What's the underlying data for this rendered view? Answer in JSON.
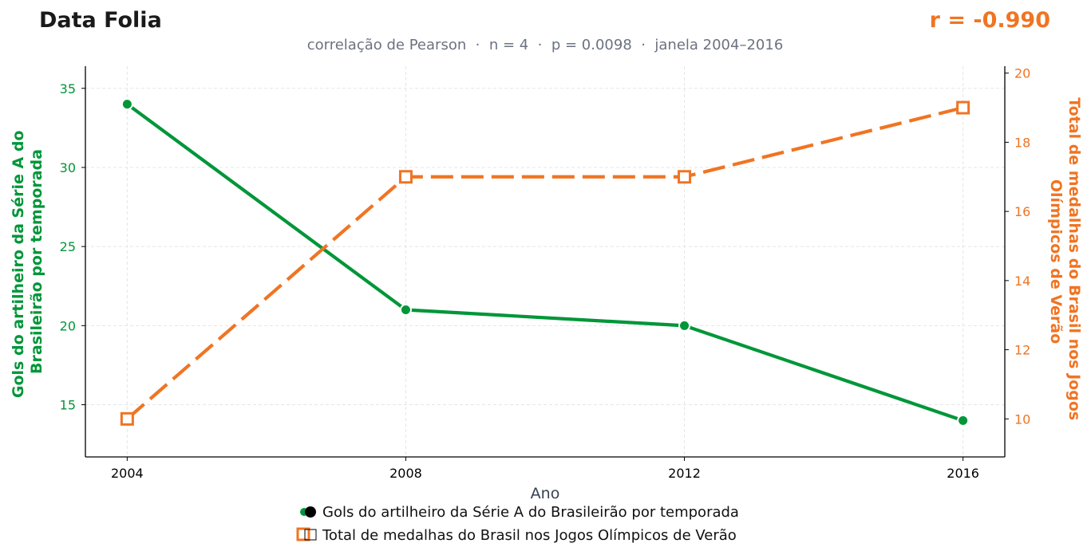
{
  "header": {
    "brand": "Data Folia",
    "stat": "r = -0.990",
    "subtitle": "correlação de Pearson  ·  n = 4  ·  p = 0.0098  ·  janela 2004–2016"
  },
  "colors": {
    "left": "#009639",
    "right": "#f07423",
    "grid": "#e5e5e5",
    "axis": "#000000"
  },
  "legend": {
    "placement": "bottom-center",
    "items": [
      {
        "marker": "filled-circle",
        "label": "Gols do artilheiro da Série A do Brasileirão por temporada"
      },
      {
        "marker": "open-square",
        "label": "Total de medalhas do Brasil nos Jogos Olímpicos de Verão"
      }
    ]
  },
  "chart_data": {
    "type": "line",
    "grid": true,
    "x": [
      2004,
      2008,
      2012,
      2016
    ],
    "xlabel": "Ano",
    "xticks": [
      2004,
      2008,
      2012,
      2016
    ],
    "xlim": [
      2003.4,
      2016.6
    ],
    "series": [
      {
        "name": "Gols do artilheiro da Série A do Brasileirão por temporada",
        "axis": "left",
        "values": [
          34,
          21,
          20,
          14
        ],
        "line_style": "solid",
        "marker": "circle"
      },
      {
        "name": "Total de medalhas do Brasil nos Jogos Olímpicos de Verão",
        "axis": "right",
        "values": [
          10,
          17,
          17,
          19
        ],
        "line_style": "dashed",
        "marker": "square-open"
      }
    ],
    "y_left": {
      "label_lines": [
        "Gols do artilheiro da Série A do",
        "Brasileirão por temporada"
      ],
      "ticks": [
        15,
        20,
        25,
        30,
        35
      ],
      "lim": [
        11.7,
        36.4
      ]
    },
    "y_right": {
      "label_lines": [
        "Total de medalhas do Brasil nos Jogos",
        "Olímpicos de Verão"
      ],
      "ticks": [
        10,
        12,
        14,
        16,
        18,
        20
      ],
      "lim": [
        8.9,
        20.2
      ]
    }
  }
}
